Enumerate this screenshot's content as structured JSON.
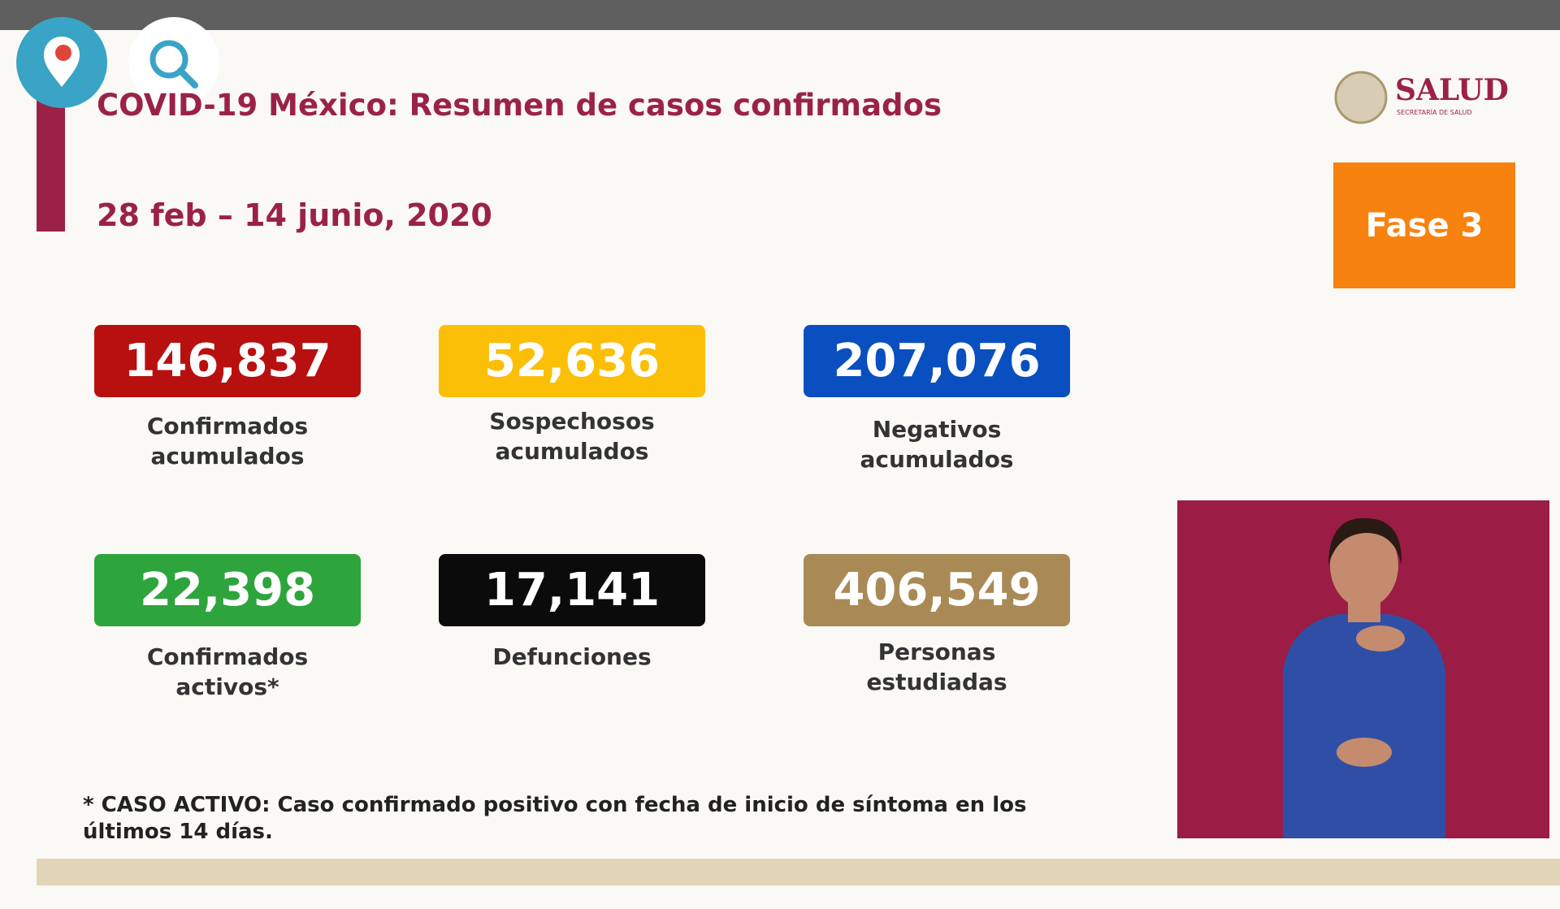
{
  "header": {
    "title": "COVID-19 México: Resumen de casos confirmados",
    "date": "28 feb – 14 junio, 2020"
  },
  "logo": {
    "name": "SALUD",
    "subtitle": "SECRETARÍA DE SALUD"
  },
  "phase": "Fase 3",
  "stats": [
    {
      "value": "146,837",
      "label": [
        "Confirmados",
        "acumulados"
      ]
    },
    {
      "value": "52,636",
      "label": [
        "Sospechosos",
        "acumulados"
      ]
    },
    {
      "value": "207,076",
      "label": [
        "Negativos",
        "acumulados"
      ]
    },
    {
      "value": "22,398",
      "label": [
        "Confirmados",
        "activos*"
      ]
    },
    {
      "value": "17,141",
      "label": [
        "Defunciones"
      ]
    },
    {
      "value": "406,549",
      "label": [
        "Personas",
        "estudiadas"
      ]
    }
  ],
  "footnote": [
    "* CASO ACTIVO: Caso confirmado positivo con fecha de inicio de síntoma en los",
    "últimos 14 días."
  ]
}
